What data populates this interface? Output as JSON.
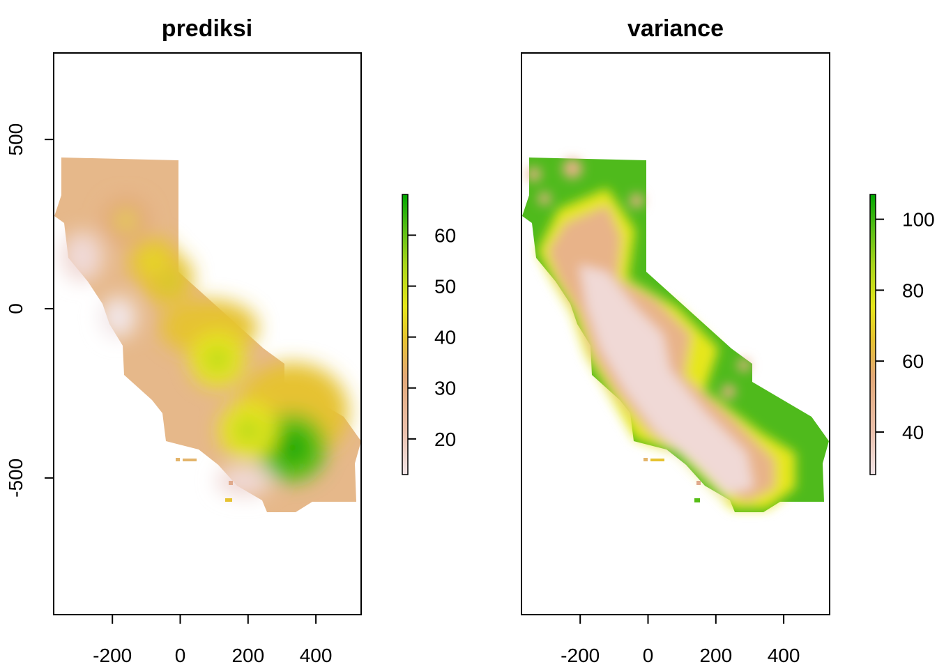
{
  "chart_data": [
    {
      "type": "heatmap",
      "title": "prediksi",
      "xlabel": "",
      "ylabel": "",
      "xlim": [
        -370,
        530
      ],
      "ylim": [
        -900,
        760
      ],
      "x_ticks": [
        "-200",
        "0",
        "200",
        "400"
      ],
      "y_ticks": [
        "500",
        "0",
        "-500"
      ],
      "legend": {
        "ticks": [
          "20",
          "30",
          "40",
          "50",
          "60"
        ],
        "range": [
          13,
          68
        ],
        "colors": [
          "#f2e6e8",
          "#ebc1ad",
          "#e3a877",
          "#e6c230",
          "#e6e61a",
          "#a8d51a",
          "#56bd16",
          "#00a600"
        ]
      },
      "hotspots": [
        {
          "x": 330,
          "y": -410,
          "value": 68
        },
        {
          "x": 200,
          "y": -360,
          "value": 55
        },
        {
          "x": 110,
          "y": -150,
          "value": 52
        },
        {
          "x": -40,
          "y": 90,
          "value": 50
        },
        {
          "x": -80,
          "y": 140,
          "value": 45
        },
        {
          "x": -160,
          "y": 260,
          "value": 42
        }
      ]
    },
    {
      "type": "heatmap",
      "title": "variance",
      "xlabel": "",
      "ylabel": "",
      "xlim": [
        -370,
        530
      ],
      "ylim": [
        -900,
        760
      ],
      "x_ticks": [
        "-200",
        "0",
        "200",
        "400"
      ],
      "y_ticks": [],
      "legend": {
        "ticks": [
          "40",
          "60",
          "80",
          "100"
        ],
        "range": [
          28,
          107
        ],
        "colors": [
          "#f2e6e8",
          "#ebc1ad",
          "#e3a877",
          "#e6c230",
          "#e6e61a",
          "#a8d51a",
          "#56bd16",
          "#00a600"
        ]
      }
    }
  ]
}
